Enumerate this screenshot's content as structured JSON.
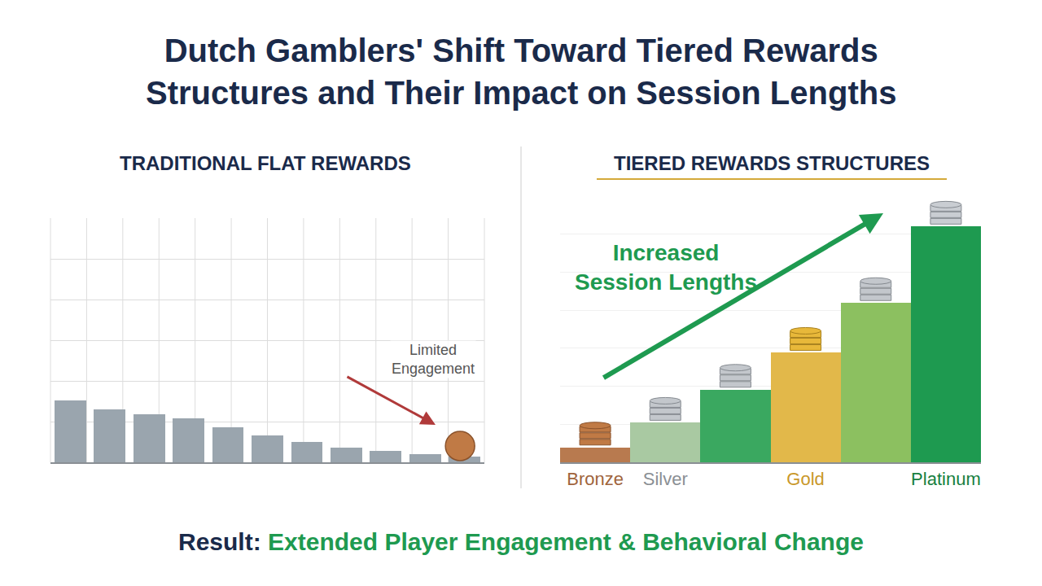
{
  "title": "Dutch Gamblers' Shift Toward Tiered Rewards Structures and Their Impact on Session Lengths",
  "footer": {
    "label": "Result:",
    "text": "Extended Player Engagement & Behavioral Change"
  },
  "chart_data": [
    {
      "type": "bar",
      "title": "TRADITIONAL FLAT REWARDS",
      "categories": [
        null,
        null,
        null,
        null,
        null,
        null,
        null,
        null,
        null,
        null,
        null
      ],
      "values": [
        1.52,
        1.3,
        1.18,
        1.08,
        0.86,
        0.66,
        0.5,
        0.36,
        0.28,
        0.2,
        0.14
      ],
      "color": "#9aa5ae",
      "ylim": [
        0,
        6
      ],
      "yticks": [
        0,
        1,
        2,
        3,
        4,
        5,
        6
      ],
      "grid": true,
      "tick_labels": false,
      "annotations": [
        "Limited Engagement"
      ]
    },
    {
      "type": "bar",
      "title": "TIERED REWARDS STRUCTURES",
      "categories": [
        "Bronze",
        "Silver",
        null,
        "Gold",
        null,
        "Platinum"
      ],
      "values": [
        0.39,
        1.04,
        1.91,
        2.88,
        4.19,
        6.2
      ],
      "colors": [
        "#b87a4f",
        "#a9c9a2",
        "#3aa860",
        "#e2b84a",
        "#8cc060",
        "#1e9a50"
      ],
      "ylim": [
        0,
        7
      ],
      "yticks": [
        0,
        1,
        2,
        3,
        4,
        5,
        6,
        7
      ],
      "grid": true,
      "tick_labels": "x",
      "annotations": [
        "Increased Session Lengths"
      ]
    }
  ]
}
